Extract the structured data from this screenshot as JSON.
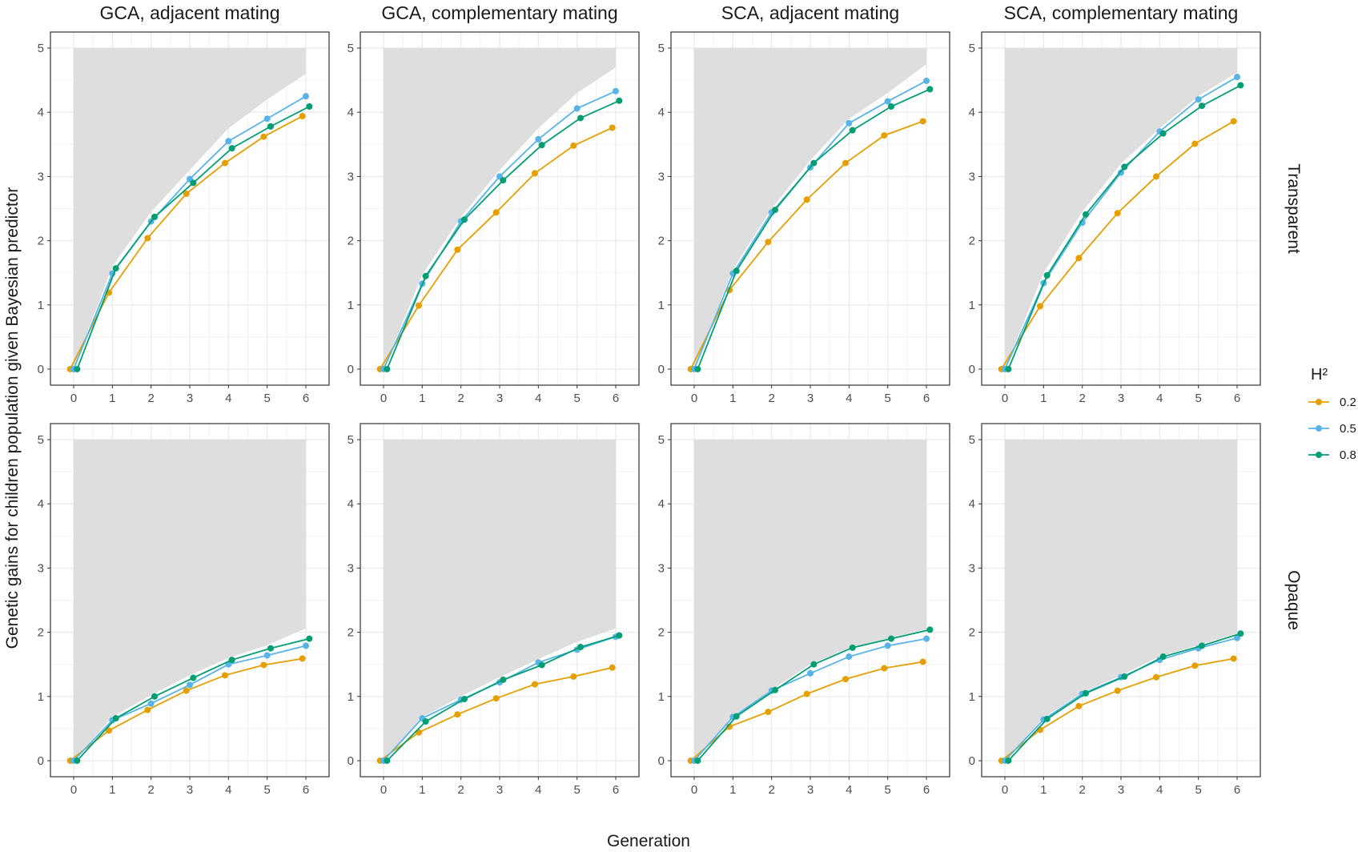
{
  "chart_data": {
    "type": "line",
    "xlabel": "Generation",
    "ylabel": "Genetic gains for children population given Bayesian predictor",
    "columns": [
      "GCA, adjacent mating",
      "GCA, complementary mating",
      "SCA, adjacent mating",
      "SCA, complementary mating"
    ],
    "rows": [
      "Transparent",
      "Opaque"
    ],
    "x": [
      0,
      1,
      2,
      3,
      4,
      5,
      6
    ],
    "xlim": [
      -0.6,
      6.6
    ],
    "ylim": [
      -0.25,
      5.25
    ],
    "yticks": [
      0,
      1,
      2,
      3,
      4,
      5
    ],
    "legend": {
      "title": "H²",
      "position": "right",
      "entries": [
        {
          "label": "0.2",
          "color": "#E69F00"
        },
        {
          "label": "0.5",
          "color": "#56B4E9"
        },
        {
          "label": "0.8",
          "color": "#009E73"
        }
      ]
    },
    "colors": {
      "0.2": "#E69F00",
      "0.5": "#56B4E9",
      "0.8": "#009E73",
      "ribbon": "#DCDCDC",
      "panel_grid": "#EBEBEB"
    },
    "panels": [
      {
        "row": "Transparent",
        "col": "GCA, adjacent mating",
        "ribbon_upper": [
          5,
          5,
          5,
          5,
          5,
          5,
          5
        ],
        "ribbon_lower": [
          0,
          1.6,
          2.45,
          3.1,
          3.75,
          4.2,
          4.6
        ],
        "series": [
          {
            "name": "0.2",
            "values": [
              0,
              1.19,
              2.04,
              2.73,
              3.21,
              3.62,
              3.94
            ]
          },
          {
            "name": "0.5",
            "values": [
              0,
              1.49,
              2.3,
              2.96,
              3.55,
              3.9,
              4.25
            ]
          },
          {
            "name": "0.8",
            "values": [
              0,
              1.57,
              2.37,
              2.9,
              3.44,
              3.78,
              4.09
            ]
          }
        ]
      },
      {
        "row": "Transparent",
        "col": "GCA, complementary mating",
        "ribbon_upper": [
          5,
          5,
          5,
          5,
          5,
          5,
          5
        ],
        "ribbon_lower": [
          0,
          1.47,
          2.37,
          3.1,
          3.75,
          4.3,
          4.7
        ],
        "series": [
          {
            "name": "0.2",
            "values": [
              0,
              0.99,
              1.86,
              2.44,
              3.05,
              3.48,
              3.76
            ]
          },
          {
            "name": "0.5",
            "values": [
              0,
              1.33,
              2.3,
              3.0,
              3.58,
              4.06,
              4.33
            ]
          },
          {
            "name": "0.8",
            "values": [
              0,
              1.45,
              2.33,
              2.94,
              3.49,
              3.91,
              4.18
            ]
          }
        ]
      },
      {
        "row": "Transparent",
        "col": "SCA, adjacent mating",
        "ribbon_upper": [
          5,
          5,
          5,
          5,
          5,
          5,
          5
        ],
        "ribbon_lower": [
          0,
          1.55,
          2.5,
          3.25,
          3.9,
          4.3,
          4.75
        ],
        "series": [
          {
            "name": "0.2",
            "values": [
              0,
              1.23,
              1.98,
              2.64,
              3.21,
              3.64,
              3.86
            ]
          },
          {
            "name": "0.5",
            "values": [
              0,
              1.49,
              2.44,
              3.14,
              3.83,
              4.17,
              4.49
            ]
          },
          {
            "name": "0.8",
            "values": [
              0,
              1.53,
              2.48,
              3.21,
              3.72,
              4.09,
              4.36
            ]
          }
        ]
      },
      {
        "row": "Transparent",
        "col": "SCA, complementary mating",
        "ribbon_upper": [
          5,
          5,
          5,
          5,
          5,
          5,
          5
        ],
        "ribbon_lower": [
          0,
          1.5,
          2.45,
          3.2,
          3.75,
          4.25,
          4.62
        ],
        "series": [
          {
            "name": "0.2",
            "values": [
              0,
              0.98,
              1.73,
              2.43,
              3.0,
              3.51,
              3.86
            ]
          },
          {
            "name": "0.5",
            "values": [
              0,
              1.34,
              2.28,
              3.06,
              3.7,
              4.2,
              4.55
            ]
          },
          {
            "name": "0.8",
            "values": [
              0,
              1.46,
              2.41,
              3.15,
              3.67,
              4.1,
              4.42
            ]
          }
        ]
      },
      {
        "row": "Opaque",
        "col": "GCA, adjacent mating",
        "ribbon_upper": [
          5,
          5,
          5,
          5,
          5,
          5,
          5
        ],
        "ribbon_lower": [
          0,
          0.68,
          1.02,
          1.33,
          1.6,
          1.8,
          2.06
        ],
        "series": [
          {
            "name": "0.2",
            "values": [
              0,
              0.47,
              0.79,
              1.09,
              1.33,
              1.49,
              1.59
            ]
          },
          {
            "name": "0.5",
            "values": [
              0,
              0.63,
              0.89,
              1.18,
              1.5,
              1.64,
              1.79
            ]
          },
          {
            "name": "0.8",
            "values": [
              0,
              0.66,
              1.0,
              1.29,
              1.57,
              1.75,
              1.9
            ]
          }
        ]
      },
      {
        "row": "Opaque",
        "col": "GCA, complementary mating",
        "ribbon_upper": [
          5,
          5,
          5,
          5,
          5,
          5,
          5
        ],
        "ribbon_lower": [
          0,
          0.68,
          1.0,
          1.3,
          1.58,
          1.85,
          2.06
        ],
        "series": [
          {
            "name": "0.2",
            "values": [
              0,
              0.44,
              0.72,
              0.97,
              1.19,
              1.31,
              1.45
            ]
          },
          {
            "name": "0.5",
            "values": [
              0,
              0.66,
              0.95,
              1.22,
              1.53,
              1.73,
              1.93
            ]
          },
          {
            "name": "0.8",
            "values": [
              0,
              0.61,
              0.96,
              1.26,
              1.49,
              1.77,
              1.95
            ]
          }
        ]
      },
      {
        "row": "Opaque",
        "col": "SCA, adjacent mating",
        "ribbon_upper": [
          5,
          5,
          5,
          5,
          5,
          5,
          5
        ],
        "ribbon_lower": [
          0,
          0.7,
          1.1,
          1.5,
          1.75,
          1.9,
          2.05
        ],
        "series": [
          {
            "name": "0.2",
            "values": [
              0,
              0.53,
              0.76,
              1.04,
              1.27,
              1.44,
              1.54
            ]
          },
          {
            "name": "0.5",
            "values": [
              0,
              0.68,
              1.09,
              1.36,
              1.62,
              1.79,
              1.9
            ]
          },
          {
            "name": "0.8",
            "values": [
              0,
              0.69,
              1.1,
              1.5,
              1.76,
              1.9,
              2.04
            ]
          }
        ]
      },
      {
        "row": "Opaque",
        "col": "SCA, complementary mating",
        "ribbon_upper": [
          5,
          5,
          5,
          5,
          5,
          5,
          5
        ],
        "ribbon_lower": [
          0,
          0.67,
          1.06,
          1.33,
          1.62,
          1.8,
          1.98
        ],
        "series": [
          {
            "name": "0.2",
            "values": [
              0,
              0.48,
              0.85,
              1.09,
              1.3,
              1.48,
              1.59
            ]
          },
          {
            "name": "0.5",
            "values": [
              0,
              0.64,
              1.04,
              1.3,
              1.57,
              1.75,
              1.91
            ]
          },
          {
            "name": "0.8",
            "values": [
              0,
              0.65,
              1.05,
              1.31,
              1.62,
              1.79,
              1.98
            ]
          }
        ]
      }
    ]
  }
}
